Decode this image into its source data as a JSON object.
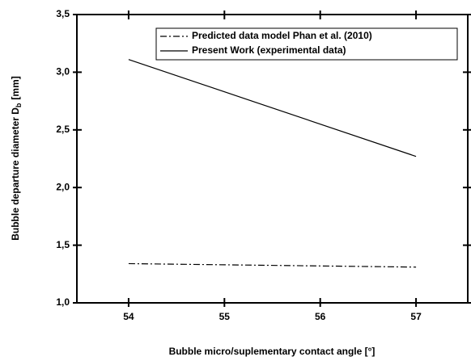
{
  "chart_data": {
    "type": "line",
    "xlabel": "Bubble micro/suplementary contact angle [°]",
    "ylabel": "Bubble departure diameter D",
    "ylabel_sub": "b",
    "ylabel_unit": "[mm]",
    "x": [
      54,
      57
    ],
    "xlim": [
      53.46,
      57.54
    ],
    "xticks": [
      54,
      55,
      56,
      57
    ],
    "ylim": [
      1.0,
      3.5
    ],
    "yticks": [
      {
        "value": 1.0,
        "label": "1,0"
      },
      {
        "value": 1.5,
        "label": "1,5"
      },
      {
        "value": 2.0,
        "label": "2,0"
      },
      {
        "value": 2.5,
        "label": "2,5"
      },
      {
        "value": 3.0,
        "label": "3,0"
      },
      {
        "value": 3.5,
        "label": "3,5"
      }
    ],
    "series": [
      {
        "name": "Predicted data model Phan et al. (2010)",
        "color": "#000000",
        "dash": "dashdot",
        "values": [
          1.34,
          1.31
        ]
      },
      {
        "name": "Present Work (experimental data)",
        "color": "#000000",
        "dash": "solid",
        "values": [
          3.11,
          2.27
        ]
      }
    ],
    "legend": "top-right",
    "grid": false
  }
}
